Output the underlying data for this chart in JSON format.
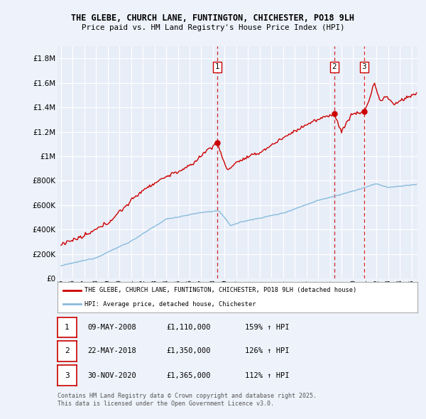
{
  "title_line1": "THE GLEBE, CHURCH LANE, FUNTINGTON, CHICHESTER, PO18 9LH",
  "title_line2": "Price paid vs. HM Land Registry's House Price Index (HPI)",
  "background_color": "#eef2fa",
  "plot_bg_color": "#e8eef8",
  "grid_color": "#ffffff",
  "red_color": "#cc0000",
  "blue_color": "#88bbdd",
  "sale_dates": [
    2008.37,
    2018.38,
    2020.92
  ],
  "sale_prices": [
    1110000,
    1350000,
    1365000
  ],
  "sale_labels": [
    "1",
    "2",
    "3"
  ],
  "sale_date_strs": [
    "09-MAY-2008",
    "22-MAY-2018",
    "30-NOV-2020"
  ],
  "sale_price_strs": [
    "£1,110,000",
    "£1,350,000",
    "£1,365,000"
  ],
  "sale_hpi_strs": [
    "159% ↑ HPI",
    "126% ↑ HPI",
    "112% ↑ HPI"
  ],
  "legend_red": "THE GLEBE, CHURCH LANE, FUNTINGTON, CHICHESTER, PO18 9LH (detached house)",
  "legend_blue": "HPI: Average price, detached house, Chichester",
  "footer": "Contains HM Land Registry data © Crown copyright and database right 2025.\nThis data is licensed under the Open Government Licence v3.0.",
  "ylim": [
    0,
    1900000
  ],
  "yticks": [
    0,
    200000,
    400000,
    600000,
    800000,
    1000000,
    1200000,
    1400000,
    1600000,
    1800000
  ],
  "xlim_start": 1994.7,
  "xlim_end": 2025.5
}
